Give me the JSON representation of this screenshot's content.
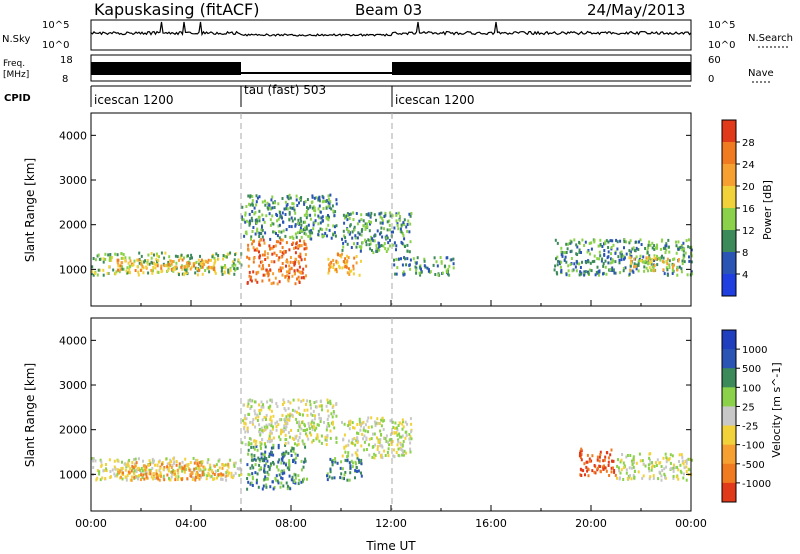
{
  "header": {
    "station": "Kapuskasing (fitACF)",
    "beam": "Beam 03",
    "date": "24/May/2013"
  },
  "top_panels": {
    "nsky_label": "N.Sky",
    "nsearch_label": "N.Search",
    "nsky_ticks": [
      "10^5",
      "10^0"
    ],
    "nsearch_ticks": [
      "10^5",
      "10^0"
    ],
    "freq_label_1": "Freq.",
    "freq_label_2": "[MHz]",
    "freq_ticks": [
      "18",
      "8"
    ],
    "nave_label": "Nave",
    "nave_ticks": [
      "60",
      "0"
    ],
    "cpid_label": "CPID",
    "cpid_segments": [
      {
        "label": "icescan 1200",
        "start": 0,
        "end": 6
      },
      {
        "label": "tau (fast) 503",
        "start": 6,
        "end": 12
      },
      {
        "label": "icescan 1200",
        "start": 12,
        "end": 24
      }
    ]
  },
  "colors": {
    "power_scale": [
      "#1f3fe0",
      "#2a55b4",
      "#3c8a5a",
      "#8bd24a",
      "#f2d23a",
      "#f5a030",
      "#f07a20",
      "#e03a1a"
    ],
    "velocity_scale": [
      "#1f3fbf",
      "#2a55b4",
      "#3c8a5a",
      "#8bd24a",
      "#c8c8c8",
      "#f2d23a",
      "#f5a030",
      "#f07a20",
      "#e03a1a"
    ]
  },
  "chart_data": [
    {
      "type": "heatmap",
      "panel": "power",
      "xlabel": "",
      "ylabel": "Slant Range [km]",
      "xlim": [
        0,
        24
      ],
      "ylim": [
        180,
        4500
      ],
      "yticks": [
        "1000",
        "2000",
        "3000",
        "4000"
      ],
      "colorbar_label": "Power [dB]",
      "colorbar_ticks": [
        "4",
        "8",
        "12",
        "16",
        "20",
        "24",
        "28"
      ],
      "regions": [
        {
          "x": [
            0.0,
            6.0
          ],
          "y": [
            900,
            1400
          ],
          "level": 3
        },
        {
          "x": [
            1.0,
            5.0
          ],
          "y": [
            1000,
            1250
          ],
          "level": 5
        },
        {
          "x": [
            6.2,
            8.6
          ],
          "y": [
            700,
            1700
          ],
          "level": 6
        },
        {
          "x": [
            6.0,
            9.8
          ],
          "y": [
            1700,
            2700
          ],
          "level": 2
        },
        {
          "x": [
            9.4,
            10.8
          ],
          "y": [
            900,
            1400
          ],
          "level": 5
        },
        {
          "x": [
            10.0,
            12.8
          ],
          "y": [
            1400,
            2300
          ],
          "level": 2
        },
        {
          "x": [
            12.0,
            14.5
          ],
          "y": [
            900,
            1300
          ],
          "level": 2
        },
        {
          "x": [
            18.5,
            24.0
          ],
          "y": [
            900,
            1700
          ],
          "level": 2
        },
        {
          "x": [
            21.5,
            23.5
          ],
          "y": [
            1000,
            1300
          ],
          "level": 4
        }
      ]
    },
    {
      "type": "heatmap",
      "panel": "velocity",
      "xlabel": "Time UT",
      "ylabel": "Slant Range [km]",
      "xlim": [
        0,
        24
      ],
      "ylim": [
        180,
        4500
      ],
      "xticks": [
        "00:00",
        "04:00",
        "08:00",
        "12:00",
        "16:00",
        "20:00",
        "00:00"
      ],
      "yticks": [
        "1000",
        "2000",
        "3000",
        "4000"
      ],
      "colorbar_label": "Velocity [m s^-1]",
      "colorbar_ticks": [
        "1000",
        "500",
        "100",
        "25",
        "-25",
        "-100",
        "-500",
        "-1000"
      ],
      "regions": [
        {
          "x": [
            0.0,
            6.0
          ],
          "y": [
            900,
            1400
          ],
          "level": 4
        },
        {
          "x": [
            1.0,
            5.5
          ],
          "y": [
            900,
            1300
          ],
          "level": 6
        },
        {
          "x": [
            6.2,
            8.6
          ],
          "y": [
            700,
            1700
          ],
          "level": 2
        },
        {
          "x": [
            6.0,
            9.8
          ],
          "y": [
            1700,
            2700
          ],
          "level": 4
        },
        {
          "x": [
            9.4,
            10.8
          ],
          "y": [
            900,
            1400
          ],
          "level": 2
        },
        {
          "x": [
            10.0,
            12.8
          ],
          "y": [
            1400,
            2300
          ],
          "level": 4
        },
        {
          "x": [
            19.5,
            21.0
          ],
          "y": [
            1000,
            1600
          ],
          "level": 8
        },
        {
          "x": [
            21.0,
            24.0
          ],
          "y": [
            900,
            1500
          ],
          "level": 4
        }
      ]
    }
  ]
}
